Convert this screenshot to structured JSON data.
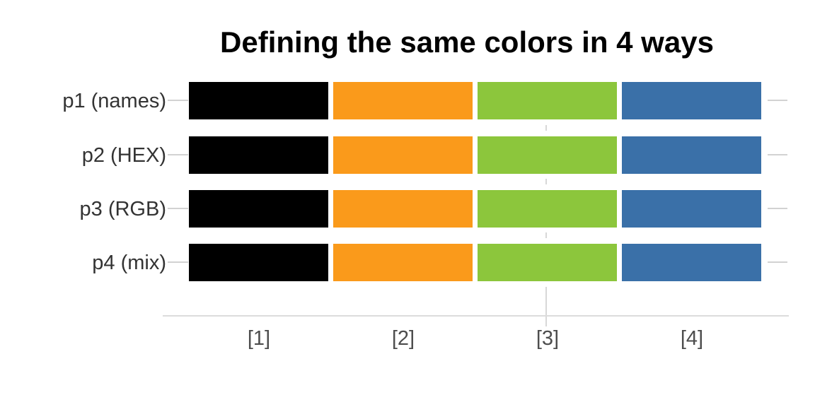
{
  "chart_data": {
    "type": "bar",
    "orientation": "horizontal",
    "title": "Defining the same colors in 4 ways",
    "categories": [
      "p1 (names)",
      "p2 (HEX)",
      "p3 (RGB)",
      "p4 (mix)"
    ],
    "x_tick_labels": [
      "[1]",
      "[2]",
      "[3]",
      "[4]"
    ],
    "series": [
      {
        "name": "p1 (names)",
        "values": [
          1,
          1,
          1,
          1
        ],
        "colors": [
          "#000000",
          "#FA9A1B",
          "#8CC63C",
          "#3A70A8"
        ]
      },
      {
        "name": "p2 (HEX)",
        "values": [
          1,
          1,
          1,
          1
        ],
        "colors": [
          "#000000",
          "#FA9A1B",
          "#8CC63C",
          "#3A70A8"
        ]
      },
      {
        "name": "p3 (RGB)",
        "values": [
          1,
          1,
          1,
          1
        ],
        "colors": [
          "#000000",
          "#FA9A1B",
          "#8CC63C",
          "#3A70A8"
        ]
      },
      {
        "name": "p4 (mix)",
        "values": [
          1,
          1,
          1,
          1
        ],
        "colors": [
          "#000000",
          "#FA9A1B",
          "#8CC63C",
          "#3A70A8"
        ]
      }
    ],
    "legend": "none",
    "grid": "off",
    "gridline_at": "[3]",
    "background": "#FFFFFF",
    "axis_color": "#DCDCDC",
    "tick_color": "#D2D2D2",
    "x_tick_label_color": "#4D4D4D",
    "y_tick_label_color": "#333333",
    "title_color": "#000000"
  }
}
